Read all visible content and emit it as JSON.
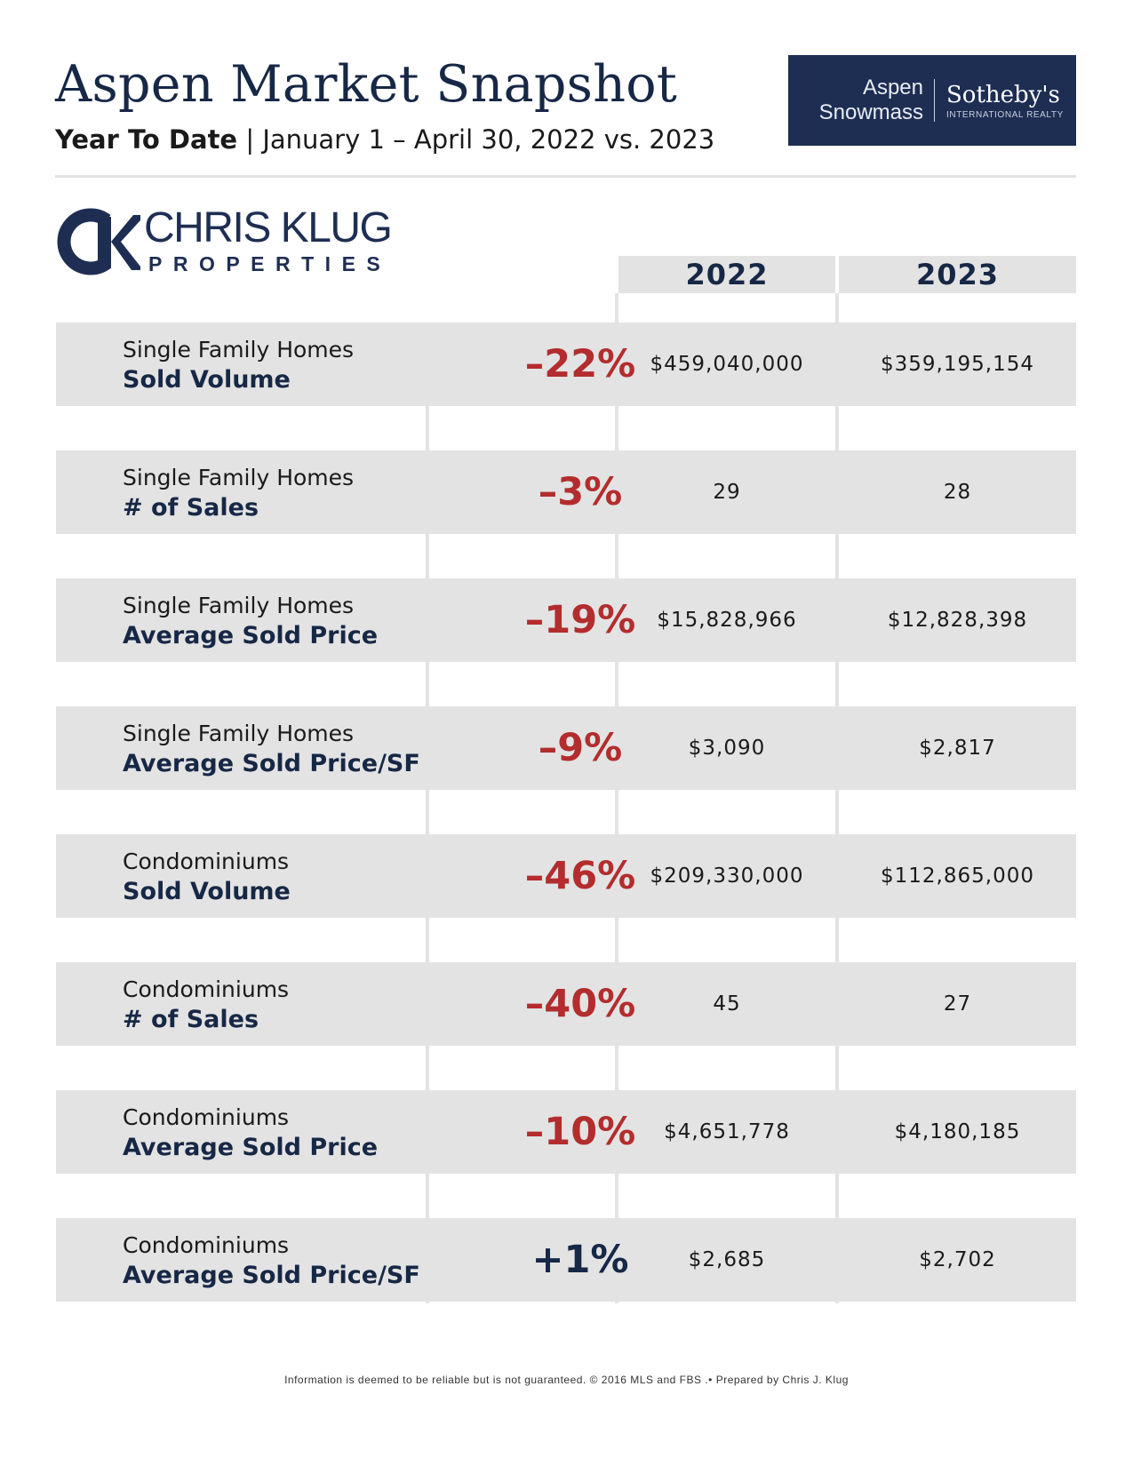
{
  "header": {
    "title": "Aspen Market Snapshot",
    "subtitle_bold": "Year To Date",
    "subtitle_rest": " | January 1 – April 30, 2022 vs. 2023"
  },
  "brand_logo": {
    "line1": "Aspen",
    "line2": "Snowmass",
    "brand": "Sotheby's",
    "tagline": "INTERNATIONAL REALTY"
  },
  "agent_logo": {
    "name": "CHRIS KLUG",
    "sub": "PROPERTIES"
  },
  "columns": [
    "2022",
    "2023"
  ],
  "rows": [
    {
      "category": "Single Family Homes",
      "metric": "Sold Volume",
      "change": "–22%",
      "v2022": "$459,040,000",
      "v2023": "$359,195,154"
    },
    {
      "category": "Single Family Homes",
      "metric": "# of Sales",
      "change": "–3%",
      "v2022": "29",
      "v2023": "28"
    },
    {
      "category": "Single Family Homes",
      "metric": "Average Sold Price",
      "change": "–19%",
      "v2022": "$15,828,966",
      "v2023": "$12,828,398"
    },
    {
      "category": "Single Family Homes",
      "metric": "Average Sold Price/SF",
      "change": "–9%",
      "v2022": "$3,090",
      "v2023": "$2,817"
    },
    {
      "category": "Condominiums",
      "metric": "Sold Volume",
      "change": "–46%",
      "v2022": "$209,330,000",
      "v2023": "$112,865,000"
    },
    {
      "category": "Condominiums",
      "metric": "# of Sales",
      "change": "–40%",
      "v2022": "45",
      "v2023": "27"
    },
    {
      "category": "Condominiums",
      "metric": "Average Sold Price",
      "change": "–10%",
      "v2022": "$4,651,778",
      "v2023": "$4,180,185"
    },
    {
      "category": "Condominiums",
      "metric": "Average Sold Price/SF",
      "change": "+1%",
      "v2022": "$2,685",
      "v2023": "$2,702"
    }
  ],
  "colors": {
    "navy": "#172846",
    "negative": "#b32d2e",
    "positive": "#172846",
    "row_bg": "#e3e3e3"
  },
  "footer": "Information is deemed to be reliable but is not guaranteed. © 2016 MLS and FBS .• Prepared by Chris J. Klug"
}
